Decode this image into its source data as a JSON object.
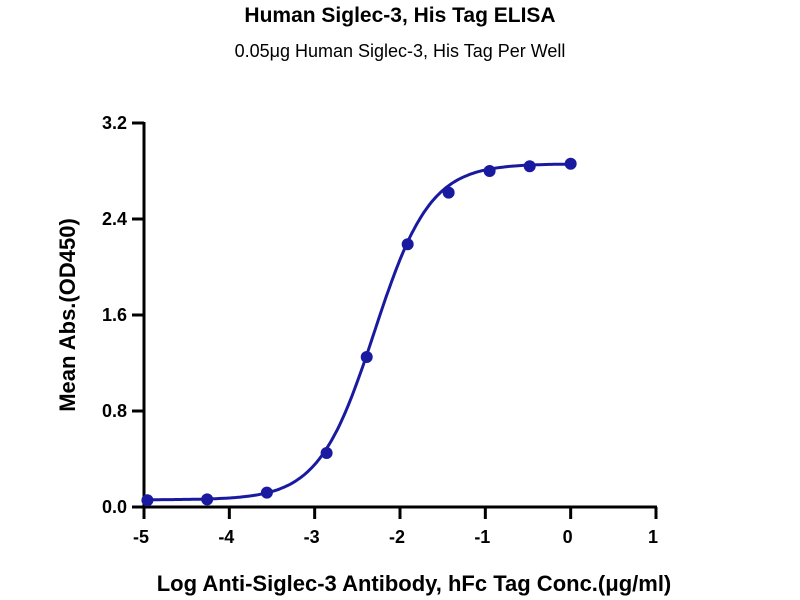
{
  "chart_data": {
    "type": "line",
    "title": "Human Siglec-3, His Tag ELISA",
    "subtitle": "0.05μg Human Siglec-3, His Tag Per Well",
    "xlabel": "Log Anti-Siglec-3 Antibody, hFc Tag Conc.(μg/ml)",
    "ylabel": "Mean Abs.(OD450)",
    "xlim": [
      -5,
      1
    ],
    "ylim": [
      0,
      3.2
    ],
    "xticks": [
      "-5",
      "-4",
      "-3",
      "-2",
      "-1",
      "0",
      "1"
    ],
    "yticks": [
      "0.0",
      "0.8",
      "1.6",
      "2.4",
      "3.2"
    ],
    "grid": false,
    "color": "#1a1aa0",
    "x": [
      -4.96,
      -4.26,
      -3.56,
      -2.86,
      -2.39,
      -1.91,
      -1.43,
      -0.95,
      -0.48,
      0
    ],
    "y": [
      0.056,
      0.064,
      0.12,
      0.45,
      1.25,
      2.19,
      2.62,
      2.8,
      2.84,
      2.86
    ],
    "fit": "sigmoidal curve"
  }
}
